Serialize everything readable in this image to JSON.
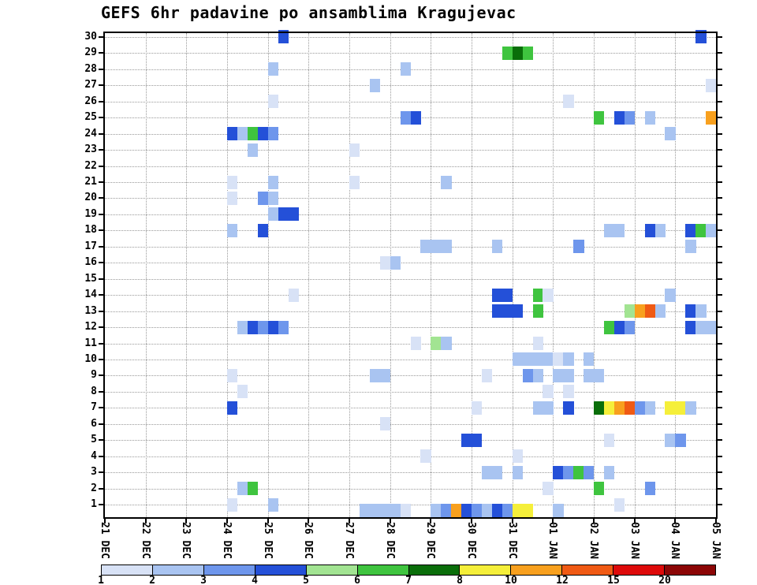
{
  "chart_data": {
    "type": "heatmap",
    "title": "GEFS 6hr padavine po ansamblima Kragujevac",
    "x_axis": {
      "tick_labels": [
        "21 DEC",
        "22 DEC",
        "23 DEC",
        "24 DEC",
        "25 DEC",
        "26 DEC",
        "27 DEC",
        "28 DEC",
        "29 DEC",
        "30 DEC",
        "31 DEC",
        "01 JAN",
        "02 JAN",
        "03 JAN",
        "04 JAN",
        "05 JAN"
      ],
      "steps_per_day": 4,
      "step_hours": 6,
      "n_steps": 60
    },
    "y_axis": {
      "tick_labels": [
        "30",
        "29",
        "28",
        "27",
        "26",
        "25",
        "24",
        "23",
        "22",
        "21",
        "20",
        "19",
        "18",
        "17",
        "16",
        "15",
        "14",
        "13",
        "12",
        "11",
        "10",
        "9",
        "8",
        "7",
        "6",
        "5",
        "4",
        "3",
        "2",
        "1"
      ],
      "members": 30
    },
    "grid": true,
    "colorbar": {
      "boundary_labels": [
        "1",
        "2",
        "3",
        "4",
        "5",
        "6",
        "7",
        "8",
        "10",
        "12",
        "15",
        "20"
      ],
      "colors": [
        "#d8e2f6",
        "#a9c4f1",
        "#6e96ec",
        "#2450d8",
        "#a2e492",
        "#3fc43f",
        "#0a6e0a",
        "#f5ef3a",
        "#f8a01e",
        "#f05a14",
        "#de0a0a",
        "#8c0606"
      ]
    },
    "cells_format": "[ensemble_member (0 = bottom strip), 6hr_step_index_from_21DEC, color_level_1_to_12]",
    "cells": [
      [
        30,
        17,
        4
      ],
      [
        30,
        58,
        4
      ],
      [
        29,
        39,
        6
      ],
      [
        29,
        40,
        7
      ],
      [
        29,
        41,
        6
      ],
      [
        28,
        16,
        2
      ],
      [
        28,
        29,
        2
      ],
      [
        27,
        26,
        2
      ],
      [
        27,
        59,
        1
      ],
      [
        26,
        16,
        1
      ],
      [
        26,
        45,
        1
      ],
      [
        25,
        29,
        3
      ],
      [
        25,
        30,
        4
      ],
      [
        25,
        48,
        6
      ],
      [
        25,
        50,
        4
      ],
      [
        25,
        51,
        3
      ],
      [
        25,
        53,
        2
      ],
      [
        25,
        59,
        9
      ],
      [
        24,
        12,
        4
      ],
      [
        24,
        13,
        2
      ],
      [
        24,
        14,
        6
      ],
      [
        24,
        15,
        4
      ],
      [
        24,
        16,
        3
      ],
      [
        24,
        55,
        2
      ],
      [
        23,
        14,
        2
      ],
      [
        23,
        24,
        1
      ],
      [
        21,
        12,
        1
      ],
      [
        21,
        16,
        2
      ],
      [
        21,
        24,
        1
      ],
      [
        21,
        33,
        2
      ],
      [
        20,
        12,
        1
      ],
      [
        20,
        15,
        3
      ],
      [
        20,
        16,
        2
      ],
      [
        19,
        16,
        2
      ],
      [
        19,
        17,
        4
      ],
      [
        19,
        18,
        4
      ],
      [
        18,
        12,
        2
      ],
      [
        18,
        15,
        4
      ],
      [
        18,
        49,
        2
      ],
      [
        18,
        50,
        2
      ],
      [
        18,
        53,
        4
      ],
      [
        18,
        54,
        2
      ],
      [
        18,
        57,
        4
      ],
      [
        18,
        58,
        6
      ],
      [
        18,
        59,
        2
      ],
      [
        17,
        31,
        2
      ],
      [
        17,
        32,
        2
      ],
      [
        17,
        33,
        2
      ],
      [
        17,
        38,
        2
      ],
      [
        17,
        46,
        3
      ],
      [
        17,
        57,
        2
      ],
      [
        16,
        27,
        1
      ],
      [
        16,
        28,
        2
      ],
      [
        14,
        18,
        1
      ],
      [
        14,
        38,
        4
      ],
      [
        14,
        39,
        4
      ],
      [
        14,
        42,
        6
      ],
      [
        14,
        43,
        1
      ],
      [
        14,
        55,
        2
      ],
      [
        13,
        38,
        4
      ],
      [
        13,
        39,
        4
      ],
      [
        13,
        40,
        4
      ],
      [
        13,
        42,
        6
      ],
      [
        13,
        51,
        5
      ],
      [
        13,
        52,
        9
      ],
      [
        13,
        53,
        10
      ],
      [
        13,
        54,
        2
      ],
      [
        13,
        57,
        4
      ],
      [
        13,
        58,
        2
      ],
      [
        12,
        13,
        2
      ],
      [
        12,
        14,
        4
      ],
      [
        12,
        15,
        3
      ],
      [
        12,
        16,
        4
      ],
      [
        12,
        17,
        3
      ],
      [
        12,
        49,
        6
      ],
      [
        12,
        50,
        4
      ],
      [
        12,
        51,
        3
      ],
      [
        12,
        57,
        4
      ],
      [
        12,
        58,
        2
      ],
      [
        12,
        59,
        2
      ],
      [
        11,
        30,
        1
      ],
      [
        11,
        32,
        5
      ],
      [
        11,
        33,
        2
      ],
      [
        11,
        42,
        1
      ],
      [
        10,
        40,
        2
      ],
      [
        10,
        41,
        2
      ],
      [
        10,
        42,
        2
      ],
      [
        10,
        43,
        2
      ],
      [
        10,
        44,
        1
      ],
      [
        10,
        45,
        2
      ],
      [
        10,
        47,
        2
      ],
      [
        9,
        12,
        1
      ],
      [
        9,
        26,
        2
      ],
      [
        9,
        27,
        2
      ],
      [
        9,
        37,
        1
      ],
      [
        9,
        41,
        3
      ],
      [
        9,
        42,
        2
      ],
      [
        9,
        44,
        2
      ],
      [
        9,
        45,
        2
      ],
      [
        9,
        47,
        2
      ],
      [
        9,
        48,
        2
      ],
      [
        8,
        13,
        1
      ],
      [
        8,
        43,
        1
      ],
      [
        8,
        45,
        1
      ],
      [
        7,
        12,
        4
      ],
      [
        7,
        36,
        1
      ],
      [
        7,
        42,
        2
      ],
      [
        7,
        43,
        2
      ],
      [
        7,
        45,
        4
      ],
      [
        7,
        48,
        7
      ],
      [
        7,
        49,
        8
      ],
      [
        7,
        50,
        9
      ],
      [
        7,
        51,
        10
      ],
      [
        7,
        52,
        3
      ],
      [
        7,
        53,
        2
      ],
      [
        7,
        55,
        8
      ],
      [
        7,
        56,
        8
      ],
      [
        7,
        57,
        2
      ],
      [
        6,
        27,
        1
      ],
      [
        5,
        35,
        4
      ],
      [
        5,
        36,
        4
      ],
      [
        5,
        49,
        1
      ],
      [
        5,
        55,
        2
      ],
      [
        5,
        56,
        3
      ],
      [
        4,
        31,
        1
      ],
      [
        4,
        40,
        1
      ],
      [
        3,
        37,
        2
      ],
      [
        3,
        38,
        2
      ],
      [
        3,
        40,
        2
      ],
      [
        3,
        44,
        4
      ],
      [
        3,
        45,
        3
      ],
      [
        3,
        46,
        6
      ],
      [
        3,
        47,
        3
      ],
      [
        3,
        49,
        2
      ],
      [
        2,
        13,
        2
      ],
      [
        2,
        14,
        6
      ],
      [
        2,
        43,
        1
      ],
      [
        2,
        48,
        6
      ],
      [
        2,
        53,
        3
      ],
      [
        1,
        12,
        1
      ],
      [
        1,
        16,
        2
      ],
      [
        1,
        50,
        1
      ],
      [
        0,
        25,
        2
      ],
      [
        0,
        26,
        2
      ],
      [
        0,
        27,
        2
      ],
      [
        0,
        28,
        2
      ],
      [
        0,
        29,
        1
      ],
      [
        0,
        32,
        2
      ],
      [
        0,
        33,
        3
      ],
      [
        0,
        34,
        9
      ],
      [
        0,
        35,
        4
      ],
      [
        0,
        36,
        3
      ],
      [
        0,
        37,
        2
      ],
      [
        0,
        38,
        4
      ],
      [
        0,
        39,
        3
      ],
      [
        0,
        40,
        8
      ],
      [
        0,
        41,
        8
      ],
      [
        0,
        44,
        2
      ]
    ]
  }
}
